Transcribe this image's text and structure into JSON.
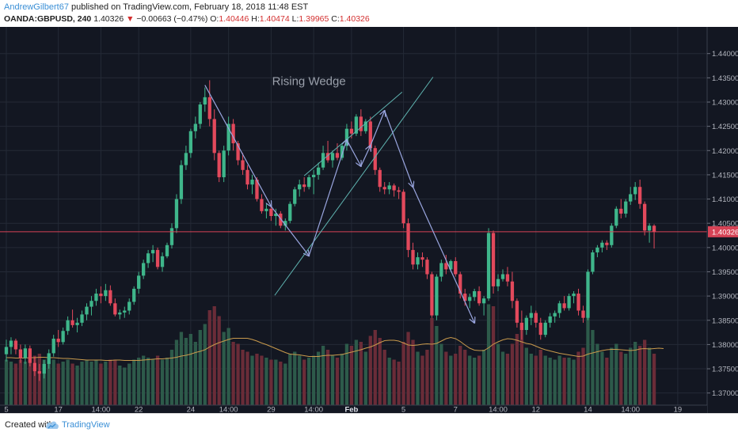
{
  "header": {
    "author": "AndrewGilbert67",
    "published_text": "published on TradingView.com, February 18, 2018 11:48 EST",
    "symbol": "OANDA:GBPUSD, 240",
    "last": "1.40326",
    "change": "−0.00663 (−0.47%)",
    "open_label": "O:",
    "open": "1.40446",
    "high_label": "H:",
    "high": "1.40474",
    "low_label": "L:",
    "low": "1.39965",
    "close_label": "C:",
    "close": "1.40326"
  },
  "footer": {
    "created_with": "Created with",
    "brand": "TradingView",
    "logo_icon": "tradingview-cloud-icon"
  },
  "colors": {
    "background": "#131722",
    "grid": "#242a36",
    "bull": "#3fb68b",
    "bear": "#e2495c",
    "bull_volume": "#2d5a4a",
    "bear_volume": "#6a2c38",
    "price_line": "#d64356",
    "pattern_lines": "#9aa6e0",
    "wedge_lines": "#5fb3b0",
    "moving_average": "#c99a4c"
  },
  "chart_data": {
    "type": "candlestick",
    "symbol": "OANDA:GBPUSD",
    "timeframe": "240",
    "annotation": "Rising Wedge",
    "current_price": 1.40326,
    "current_price_label": "1.40326",
    "ylim": [
      1.3675,
      1.4455
    ],
    "y_ticks": [
      "1.44000",
      "1.43500",
      "1.43000",
      "1.42500",
      "1.42000",
      "1.41500",
      "1.41000",
      "1.40500",
      "1.40000",
      "1.39500",
      "1.39000",
      "1.38500",
      "1.38000",
      "1.37500",
      "1.37000"
    ],
    "y_tick_values": [
      1.44,
      1.435,
      1.43,
      1.425,
      1.42,
      1.415,
      1.41,
      1.405,
      1.4,
      1.395,
      1.39,
      1.385,
      1.38,
      1.375,
      1.37
    ],
    "x_ticks": [
      "5",
      "17",
      "14:00",
      "22",
      "24",
      "14:00",
      "29",
      "14:00",
      "Feb",
      "5",
      "7",
      "14:00",
      "12",
      "14",
      "14:00",
      "19"
    ],
    "x_tick_index": [
      0,
      11,
      20,
      28,
      39,
      47,
      56,
      65,
      73,
      84,
      95,
      104,
      112,
      123,
      132,
      142
    ],
    "bar_count": 140,
    "candles": [
      [
        1.378,
        1.381,
        1.3765,
        1.3795,
        1.35
      ],
      [
        1.3795,
        1.3815,
        1.378,
        1.3808,
        1.3
      ],
      [
        1.3808,
        1.3812,
        1.378,
        1.379,
        1.25
      ],
      [
        1.379,
        1.38,
        1.3762,
        1.3772,
        1.35
      ],
      [
        1.3772,
        1.38,
        1.376,
        1.3792,
        1.3
      ],
      [
        1.3792,
        1.3798,
        1.3755,
        1.3762,
        1.4
      ],
      [
        1.3762,
        1.3775,
        1.3735,
        1.3745,
        1.45
      ],
      [
        1.3745,
        1.376,
        1.3725,
        1.374,
        1.5
      ],
      [
        1.374,
        1.3768,
        1.373,
        1.376,
        1.35
      ],
      [
        1.376,
        1.379,
        1.375,
        1.3782,
        1.3
      ],
      [
        1.3782,
        1.382,
        1.3775,
        1.3812,
        1.35
      ],
      [
        1.3812,
        1.383,
        1.3795,
        1.3805,
        1.25
      ],
      [
        1.3805,
        1.3835,
        1.38,
        1.3828,
        1.3
      ],
      [
        1.3828,
        1.3858,
        1.382,
        1.385,
        1.35
      ],
      [
        1.385,
        1.3872,
        1.3835,
        1.384,
        1.25
      ],
      [
        1.384,
        1.3855,
        1.3825,
        1.3845,
        1.2
      ],
      [
        1.3845,
        1.387,
        1.3838,
        1.3862,
        1.3
      ],
      [
        1.3862,
        1.3885,
        1.385,
        1.3878,
        1.35
      ],
      [
        1.3878,
        1.39,
        1.386,
        1.389,
        1.3
      ],
      [
        1.389,
        1.3915,
        1.388,
        1.3905,
        1.35
      ],
      [
        1.3905,
        1.392,
        1.3885,
        1.39,
        1.25
      ],
      [
        1.39,
        1.3925,
        1.389,
        1.3912,
        1.3
      ],
      [
        1.3912,
        1.3922,
        1.388,
        1.3885,
        1.35
      ],
      [
        1.3885,
        1.3895,
        1.3858,
        1.3862,
        1.35
      ],
      [
        1.3862,
        1.3872,
        1.3852,
        1.3866,
        1.2
      ],
      [
        1.3866,
        1.3878,
        1.3855,
        1.387,
        1.15
      ],
      [
        1.387,
        1.3895,
        1.3862,
        1.3888,
        1.25
      ],
      [
        1.3888,
        1.392,
        1.3882,
        1.3915,
        1.35
      ],
      [
        1.3915,
        1.395,
        1.3905,
        1.3942,
        1.4
      ],
      [
        1.3942,
        1.3975,
        1.3935,
        1.3968,
        1.45
      ],
      [
        1.3968,
        1.3995,
        1.3958,
        1.3988,
        1.4
      ],
      [
        1.3988,
        1.4005,
        1.397,
        1.3995,
        1.35
      ],
      [
        1.3995,
        1.4,
        1.3955,
        1.396,
        1.45
      ],
      [
        1.396,
        1.399,
        1.395,
        1.3982,
        1.35
      ],
      [
        1.3982,
        1.401,
        1.3978,
        1.4005,
        1.4
      ],
      [
        1.4005,
        1.405,
        1.3998,
        1.404,
        1.6
      ],
      [
        1.404,
        1.411,
        1.403,
        1.41,
        1.85
      ],
      [
        1.41,
        1.418,
        1.409,
        1.417,
        2.05
      ],
      [
        1.417,
        1.421,
        1.416,
        1.4195,
        1.9
      ],
      [
        1.4195,
        1.4245,
        1.4185,
        1.424,
        2.0
      ],
      [
        1.424,
        1.427,
        1.4225,
        1.4255,
        1.8
      ],
      [
        1.4255,
        1.43,
        1.4245,
        1.4295,
        2.1
      ],
      [
        1.4295,
        1.433,
        1.428,
        1.431,
        2.25
      ],
      [
        1.431,
        1.4345,
        1.425,
        1.4265,
        2.6
      ],
      [
        1.4265,
        1.4285,
        1.418,
        1.4195,
        2.7
      ],
      [
        1.4195,
        1.42,
        1.4135,
        1.4145,
        2.45
      ],
      [
        1.4145,
        1.421,
        1.4135,
        1.42,
        2.05
      ],
      [
        1.42,
        1.427,
        1.419,
        1.4255,
        2.15
      ],
      [
        1.4255,
        1.4265,
        1.42,
        1.4215,
        1.8
      ],
      [
        1.4215,
        1.422,
        1.417,
        1.418,
        1.75
      ],
      [
        1.418,
        1.4195,
        1.415,
        1.416,
        1.6
      ],
      [
        1.416,
        1.417,
        1.412,
        1.413,
        1.55
      ],
      [
        1.413,
        1.415,
        1.411,
        1.414,
        1.45
      ],
      [
        1.414,
        1.4145,
        1.4095,
        1.41,
        1.5
      ],
      [
        1.41,
        1.411,
        1.407,
        1.4075,
        1.45
      ],
      [
        1.4075,
        1.409,
        1.406,
        1.408,
        1.4
      ],
      [
        1.408,
        1.4085,
        1.4055,
        1.4065,
        1.35
      ],
      [
        1.4065,
        1.408,
        1.4045,
        1.407,
        1.35
      ],
      [
        1.407,
        1.4075,
        1.404,
        1.4045,
        1.3
      ],
      [
        1.4045,
        1.406,
        1.4035,
        1.4055,
        1.25
      ],
      [
        1.4055,
        1.4095,
        1.405,
        1.409,
        1.5
      ],
      [
        1.409,
        1.4125,
        1.4085,
        1.412,
        1.55
      ],
      [
        1.412,
        1.414,
        1.4105,
        1.413,
        1.45
      ],
      [
        1.413,
        1.4145,
        1.4115,
        1.4125,
        1.35
      ],
      [
        1.4125,
        1.415,
        1.412,
        1.4145,
        1.4
      ],
      [
        1.4145,
        1.416,
        1.411,
        1.415,
        1.45
      ],
      [
        1.415,
        1.4175,
        1.414,
        1.4165,
        1.55
      ],
      [
        1.4165,
        1.421,
        1.416,
        1.4195,
        1.7
      ],
      [
        1.4195,
        1.422,
        1.4175,
        1.418,
        1.6
      ],
      [
        1.418,
        1.42,
        1.4165,
        1.4195,
        1.45
      ],
      [
        1.4195,
        1.4215,
        1.418,
        1.4185,
        1.4
      ],
      [
        1.4185,
        1.4215,
        1.418,
        1.421,
        1.5
      ],
      [
        1.421,
        1.4255,
        1.42,
        1.4245,
        1.75
      ],
      [
        1.4245,
        1.426,
        1.4225,
        1.4235,
        1.7
      ],
      [
        1.4235,
        1.4275,
        1.423,
        1.427,
        1.85
      ],
      [
        1.427,
        1.4285,
        1.423,
        1.424,
        1.8
      ],
      [
        1.424,
        1.4265,
        1.4235,
        1.426,
        1.55
      ],
      [
        1.426,
        1.427,
        1.42,
        1.4205,
        1.95
      ],
      [
        1.4205,
        1.421,
        1.415,
        1.416,
        2.1
      ],
      [
        1.416,
        1.4165,
        1.4115,
        1.4125,
        1.9
      ],
      [
        1.4125,
        1.4135,
        1.411,
        1.412,
        1.6
      ],
      [
        1.412,
        1.4135,
        1.411,
        1.4128,
        1.4
      ],
      [
        1.4128,
        1.4132,
        1.4105,
        1.4118,
        1.35
      ],
      [
        1.4118,
        1.4125,
        1.41,
        1.4115,
        1.3
      ],
      [
        1.4115,
        1.412,
        1.404,
        1.405,
        1.8
      ],
      [
        1.405,
        1.406,
        1.398,
        1.3995,
        2.05
      ],
      [
        1.3995,
        1.401,
        1.3955,
        1.3965,
        1.85
      ],
      [
        1.3965,
        1.399,
        1.3955,
        1.398,
        1.55
      ],
      [
        1.398,
        1.399,
        1.396,
        1.3975,
        1.45
      ],
      [
        1.3975,
        1.398,
        1.3935,
        1.3945,
        1.6
      ],
      [
        1.3945,
        1.395,
        1.3855,
        1.386,
        2.4
      ],
      [
        1.386,
        1.3945,
        1.385,
        1.394,
        2.2
      ],
      [
        1.394,
        1.3975,
        1.393,
        1.3968,
        1.75
      ],
      [
        1.3968,
        1.3985,
        1.3945,
        1.3955,
        1.55
      ],
      [
        1.3955,
        1.3975,
        1.395,
        1.3972,
        1.45
      ],
      [
        1.3972,
        1.398,
        1.394,
        1.3945,
        1.5
      ],
      [
        1.3945,
        1.395,
        1.3895,
        1.3905,
        1.7
      ],
      [
        1.3905,
        1.3915,
        1.388,
        1.389,
        1.6
      ],
      [
        1.389,
        1.3905,
        1.3875,
        1.3898,
        1.45
      ],
      [
        1.3898,
        1.3915,
        1.389,
        1.391,
        1.4
      ],
      [
        1.391,
        1.392,
        1.388,
        1.3885,
        1.45
      ],
      [
        1.3885,
        1.39,
        1.386,
        1.3895,
        1.6
      ],
      [
        1.3895,
        1.404,
        1.389,
        1.403,
        2.75
      ],
      [
        1.403,
        1.4035,
        1.3905,
        1.392,
        2.7
      ],
      [
        1.392,
        1.3945,
        1.391,
        1.3935,
        1.75
      ],
      [
        1.3935,
        1.3955,
        1.393,
        1.3945,
        1.55
      ],
      [
        1.3945,
        1.396,
        1.392,
        1.393,
        1.5
      ],
      [
        1.393,
        1.395,
        1.3875,
        1.389,
        1.75
      ],
      [
        1.389,
        1.3895,
        1.3835,
        1.3845,
        2.0
      ],
      [
        1.3845,
        1.387,
        1.381,
        1.383,
        2.25
      ],
      [
        1.383,
        1.386,
        1.382,
        1.3855,
        1.65
      ],
      [
        1.3855,
        1.388,
        1.384,
        1.3865,
        1.5
      ],
      [
        1.3865,
        1.387,
        1.3835,
        1.3845,
        1.45
      ],
      [
        1.3845,
        1.3855,
        1.381,
        1.382,
        1.6
      ],
      [
        1.382,
        1.385,
        1.3815,
        1.3845,
        1.45
      ],
      [
        1.3845,
        1.3865,
        1.3835,
        1.3858,
        1.4
      ],
      [
        1.3858,
        1.387,
        1.3845,
        1.3865,
        1.35
      ],
      [
        1.3865,
        1.389,
        1.3855,
        1.3885,
        1.45
      ],
      [
        1.3885,
        1.39,
        1.387,
        1.3875,
        1.4
      ],
      [
        1.3875,
        1.3905,
        1.387,
        1.39,
        1.4
      ],
      [
        1.39,
        1.391,
        1.3885,
        1.3905,
        1.35
      ],
      [
        1.3905,
        1.3915,
        1.386,
        1.387,
        1.55
      ],
      [
        1.387,
        1.388,
        1.3845,
        1.3855,
        1.65
      ],
      [
        1.3855,
        1.3955,
        1.385,
        1.395,
        2.7
      ],
      [
        1.395,
        1.3995,
        1.3945,
        1.399,
        2.1
      ],
      [
        1.399,
        1.4005,
        1.398,
        1.4,
        1.75
      ],
      [
        1.4,
        1.4015,
        1.399,
        1.401,
        1.55
      ],
      [
        1.401,
        1.4015,
        1.3995,
        1.4005,
        1.4
      ],
      [
        1.4005,
        1.405,
        1.4,
        1.4045,
        1.65
      ],
      [
        1.4045,
        1.4085,
        1.404,
        1.408,
        1.75
      ],
      [
        1.408,
        1.41,
        1.406,
        1.407,
        1.55
      ],
      [
        1.407,
        1.41,
        1.4062,
        1.4095,
        1.5
      ],
      [
        1.4095,
        1.4125,
        1.4088,
        1.411,
        1.65
      ],
      [
        1.411,
        1.4135,
        1.4098,
        1.4125,
        1.8
      ],
      [
        1.4125,
        1.414,
        1.408,
        1.409,
        1.7
      ],
      [
        1.409,
        1.4095,
        1.4025,
        1.4035,
        1.85
      ],
      [
        1.4035,
        1.405,
        1.401,
        1.4045,
        1.65
      ],
      [
        1.4045,
        1.4048,
        1.3998,
        1.4033,
        1.5
      ]
    ],
    "volume_ma": [
      1.4,
      1.4,
      1.39,
      1.39,
      1.39,
      1.4,
      1.4,
      1.41,
      1.41,
      1.4,
      1.4,
      1.39,
      1.38,
      1.38,
      1.37,
      1.36,
      1.35,
      1.34,
      1.34,
      1.34,
      1.34,
      1.33,
      1.33,
      1.34,
      1.34,
      1.33,
      1.33,
      1.33,
      1.33,
      1.34,
      1.35,
      1.36,
      1.37,
      1.37,
      1.38,
      1.39,
      1.41,
      1.44,
      1.46,
      1.49,
      1.53,
      1.56,
      1.6,
      1.67,
      1.73,
      1.78,
      1.82,
      1.86,
      1.89,
      1.89,
      1.89,
      1.89,
      1.86,
      1.82,
      1.77,
      1.73,
      1.68,
      1.63,
      1.58,
      1.53,
      1.49,
      1.48,
      1.47,
      1.45,
      1.43,
      1.43,
      1.43,
      1.45,
      1.46,
      1.46,
      1.47,
      1.48,
      1.51,
      1.54,
      1.57,
      1.6,
      1.64,
      1.67,
      1.72,
      1.78,
      1.83,
      1.84,
      1.84,
      1.82,
      1.77,
      1.72,
      1.71,
      1.72,
      1.74,
      1.75,
      1.74,
      1.76,
      1.82,
      1.88,
      1.91,
      1.88,
      1.81,
      1.72,
      1.64,
      1.59,
      1.58,
      1.58,
      1.65,
      1.74,
      1.8,
      1.85,
      1.88,
      1.87,
      1.84,
      1.8,
      1.76,
      1.74,
      1.69,
      1.64,
      1.6,
      1.57,
      1.54,
      1.51,
      1.49,
      1.47,
      1.45,
      1.43,
      1.44,
      1.49,
      1.52,
      1.55,
      1.58,
      1.6,
      1.61,
      1.61,
      1.6,
      1.59,
      1.58,
      1.59,
      1.62,
      1.63,
      1.62,
      1.63,
      1.64,
      1.63
    ],
    "pattern_path_bars": [
      42,
      56,
      64,
      72,
      75,
      77,
      80,
      86,
      99
    ],
    "pattern_path_prices": [
      1.4335,
      1.4085,
      1.3983,
      1.4222,
      1.4168,
      1.421,
      1.4282,
      1.4125,
      1.3845
    ],
    "wedge_upper_bars": [
      63,
      81
    ],
    "wedge_upper_prices": [
      1.4148,
      1.4298
    ],
    "wedge_lower_bars": [
      60,
      87
    ],
    "wedge_lower_prices": [
      1.3945,
      1.4308
    ]
  }
}
